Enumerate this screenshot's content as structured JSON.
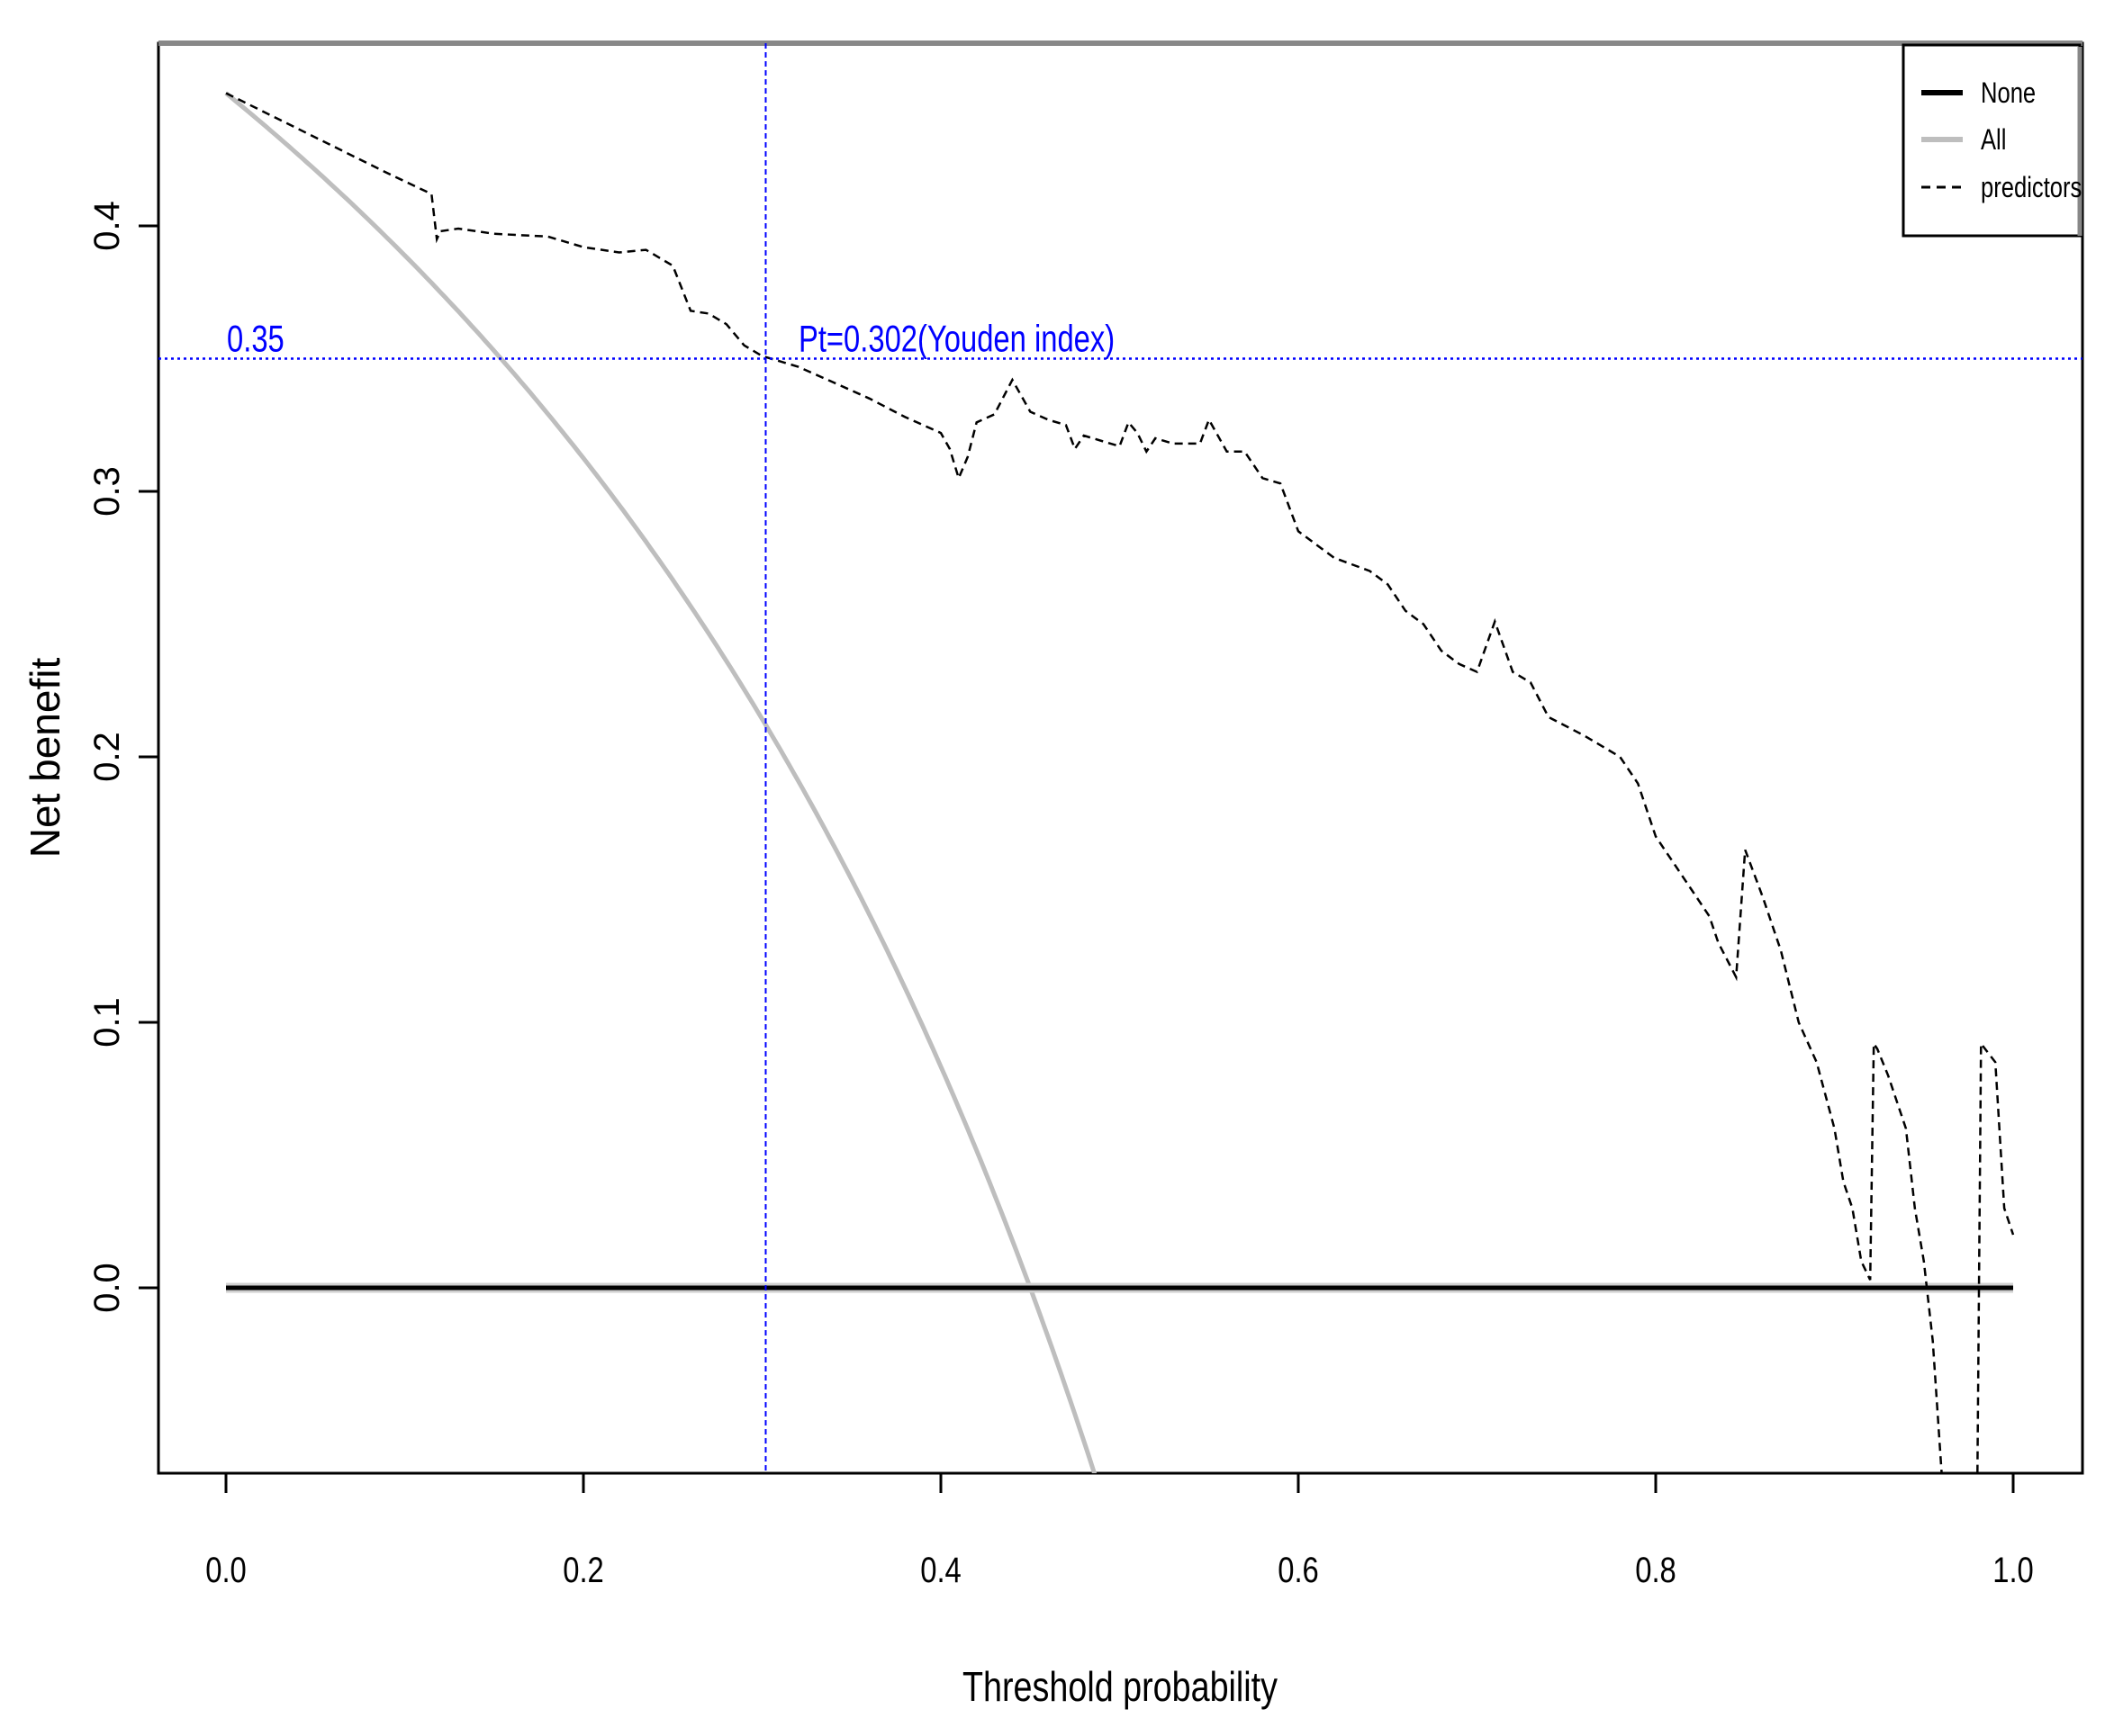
{
  "chart_data": {
    "type": "line",
    "xlabel": "Threshold probability",
    "ylabel": "Net benefit",
    "xlim": [
      0.0,
      1.0
    ],
    "ylim": [
      -0.07,
      0.46
    ],
    "xticks": [
      "0.0",
      "0.2",
      "0.4",
      "0.6",
      "0.8",
      "1.0"
    ],
    "xtick_values": [
      0.0,
      0.2,
      0.4,
      0.6,
      0.8,
      1.0
    ],
    "yticks": [
      "0.0",
      "0.1",
      "0.2",
      "0.3",
      "0.4"
    ],
    "ytick_values": [
      0.0,
      0.1,
      0.2,
      0.3,
      0.4
    ],
    "grid": false,
    "legend_position": "top-right",
    "series": [
      {
        "name": "None",
        "style": "solid",
        "color": "#000000",
        "x": [
          0.0,
          1.0
        ],
        "y": [
          0.0,
          0.0
        ]
      },
      {
        "name": "All",
        "style": "solid",
        "color": "#bebebe",
        "prevalence": 0.45
      },
      {
        "name": "predictors",
        "style": "dashed",
        "color": "#000000",
        "x": [
          0.0,
          0.03,
          0.06,
          0.09,
          0.115,
          0.118,
          0.12,
          0.13,
          0.15,
          0.18,
          0.2,
          0.22,
          0.235,
          0.25,
          0.26,
          0.27,
          0.28,
          0.29,
          0.3,
          0.32,
          0.34,
          0.36,
          0.38,
          0.4,
          0.405,
          0.41,
          0.415,
          0.42,
          0.43,
          0.44,
          0.45,
          0.46,
          0.47,
          0.475,
          0.48,
          0.49,
          0.5,
          0.505,
          0.51,
          0.515,
          0.52,
          0.53,
          0.545,
          0.55,
          0.56,
          0.57,
          0.58,
          0.59,
          0.6,
          0.62,
          0.64,
          0.65,
          0.66,
          0.67,
          0.68,
          0.69,
          0.7,
          0.71,
          0.72,
          0.73,
          0.74,
          0.76,
          0.78,
          0.79,
          0.8,
          0.81,
          0.82,
          0.83,
          0.835,
          0.845,
          0.85,
          0.86,
          0.87,
          0.88,
          0.89,
          0.9,
          0.905,
          0.91,
          0.915,
          0.92,
          0.922,
          0.924,
          0.93,
          0.94,
          0.945,
          0.95,
          0.955,
          0.96,
          0.98,
          0.982,
          0.99,
          0.995,
          1.0
        ],
        "y": [
          0.45,
          0.44,
          0.43,
          0.42,
          0.412,
          0.395,
          0.398,
          0.399,
          0.397,
          0.396,
          0.392,
          0.39,
          0.391,
          0.385,
          0.368,
          0.367,
          0.363,
          0.355,
          0.351,
          0.347,
          0.341,
          0.335,
          0.328,
          0.322,
          0.316,
          0.305,
          0.313,
          0.326,
          0.329,
          0.342,
          0.33,
          0.327,
          0.325,
          0.316,
          0.321,
          0.319,
          0.317,
          0.326,
          0.322,
          0.315,
          0.32,
          0.318,
          0.318,
          0.327,
          0.315,
          0.315,
          0.305,
          0.303,
          0.285,
          0.275,
          0.27,
          0.265,
          0.255,
          0.25,
          0.24,
          0.235,
          0.232,
          0.251,
          0.232,
          0.228,
          0.215,
          0.208,
          0.2,
          0.19,
          0.17,
          0.16,
          0.15,
          0.14,
          0.13,
          0.117,
          0.165,
          0.147,
          0.127,
          0.1,
          0.085,
          0.06,
          0.04,
          0.03,
          0.01,
          0.003,
          0.092,
          0.09,
          0.08,
          0.06,
          0.03,
          0.01,
          -0.02,
          -0.07,
          -0.07,
          0.092,
          0.085,
          0.03,
          0.02
        ]
      }
    ],
    "annotations": [
      {
        "type": "hline",
        "y": 0.35,
        "color": "#0000ff",
        "style": "dotted",
        "label": "0.35"
      },
      {
        "type": "vline",
        "x": 0.302,
        "color": "#0000ff",
        "style": "dashed",
        "label": "Pt=0.302(Youden index)"
      }
    ]
  }
}
